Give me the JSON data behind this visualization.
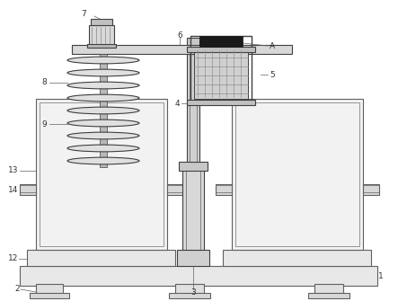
{
  "bg_color": "#ffffff",
  "lc": "#606060",
  "dc": "#404040",
  "figsize": [
    4.43,
    3.35
  ],
  "dpi": 100,
  "xlim": [
    0,
    443
  ],
  "ylim": [
    0,
    335
  ]
}
